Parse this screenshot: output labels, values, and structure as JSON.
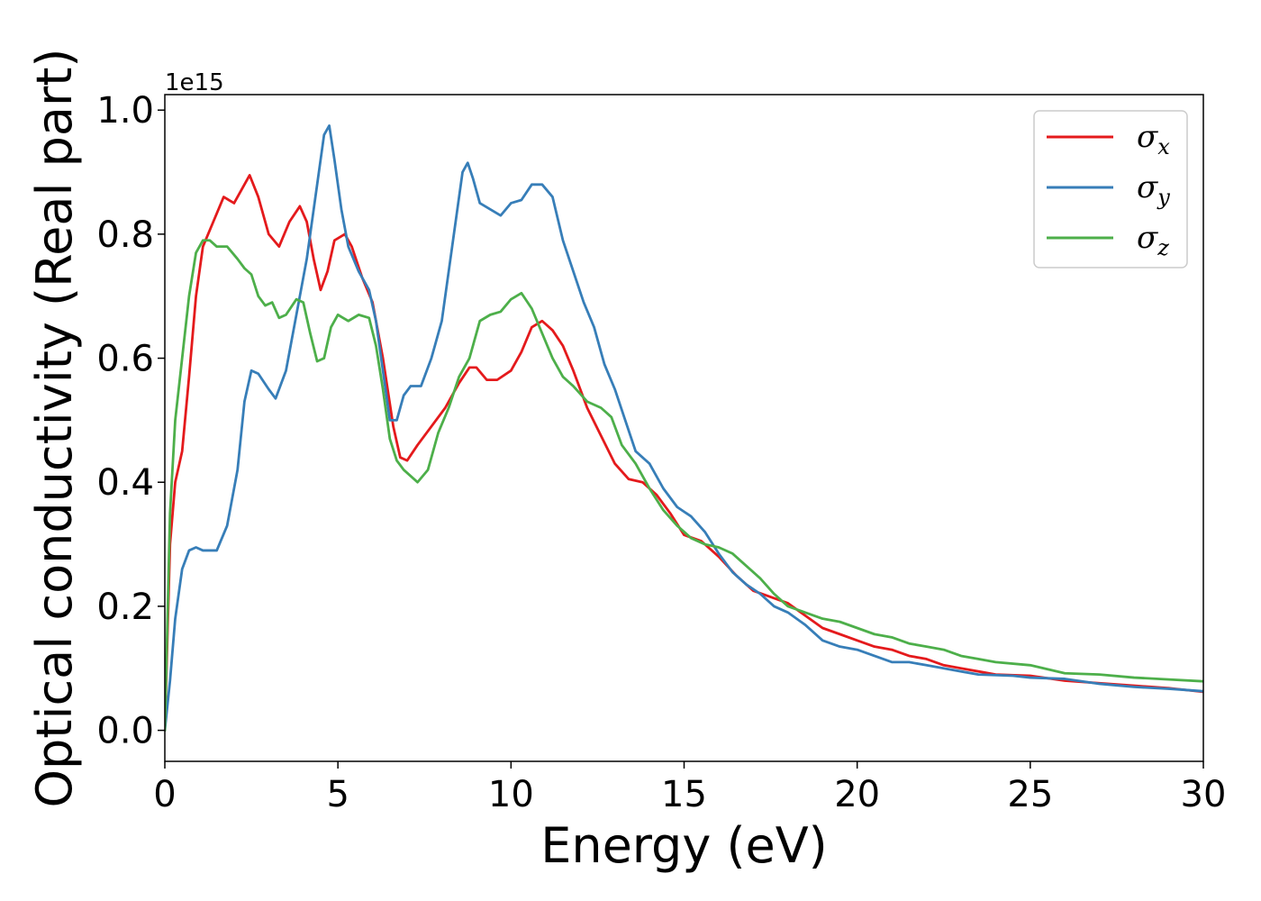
{
  "chart_data": {
    "type": "line",
    "title": "",
    "xlabel": "Energy (eV)",
    "ylabel": "Optical conductivity (Real part)",
    "y_offset_label": "1e15",
    "xlim": [
      0,
      30
    ],
    "ylim": [
      -0.05,
      1.025
    ],
    "xticks": [
      0,
      5,
      10,
      15,
      20,
      25,
      30
    ],
    "xtick_labels": [
      "0",
      "5",
      "10",
      "15",
      "20",
      "25",
      "30"
    ],
    "yticks": [
      0.0,
      0.2,
      0.4,
      0.6,
      0.8,
      1.0
    ],
    "ytick_labels": [
      "0.0",
      "0.2",
      "0.4",
      "0.6",
      "0.8",
      "1.0"
    ],
    "grid": false,
    "legend_position": "top-right",
    "series": [
      {
        "name": "σx",
        "symbol": "σ",
        "subscript": "x",
        "color": "#e41a1c",
        "points": [
          [
            0,
            0
          ],
          [
            0.15,
            0.3
          ],
          [
            0.3,
            0.4
          ],
          [
            0.5,
            0.45
          ],
          [
            0.7,
            0.57
          ],
          [
            0.9,
            0.7
          ],
          [
            1.1,
            0.78
          ],
          [
            1.4,
            0.82
          ],
          [
            1.7,
            0.86
          ],
          [
            2.0,
            0.85
          ],
          [
            2.2,
            0.87
          ],
          [
            2.45,
            0.895
          ],
          [
            2.7,
            0.86
          ],
          [
            3.0,
            0.8
          ],
          [
            3.3,
            0.78
          ],
          [
            3.6,
            0.82
          ],
          [
            3.9,
            0.845
          ],
          [
            4.1,
            0.82
          ],
          [
            4.3,
            0.76
          ],
          [
            4.5,
            0.71
          ],
          [
            4.7,
            0.74
          ],
          [
            4.9,
            0.79
          ],
          [
            5.2,
            0.8
          ],
          [
            5.4,
            0.78
          ],
          [
            5.7,
            0.73
          ],
          [
            6.0,
            0.69
          ],
          [
            6.3,
            0.6
          ],
          [
            6.6,
            0.49
          ],
          [
            6.8,
            0.44
          ],
          [
            7.0,
            0.435
          ],
          [
            7.3,
            0.46
          ],
          [
            7.7,
            0.49
          ],
          [
            8.1,
            0.52
          ],
          [
            8.5,
            0.56
          ],
          [
            8.8,
            0.585
          ],
          [
            9.0,
            0.585
          ],
          [
            9.3,
            0.565
          ],
          [
            9.6,
            0.565
          ],
          [
            10.0,
            0.58
          ],
          [
            10.3,
            0.61
          ],
          [
            10.6,
            0.65
          ],
          [
            10.9,
            0.66
          ],
          [
            11.2,
            0.645
          ],
          [
            11.5,
            0.62
          ],
          [
            11.8,
            0.58
          ],
          [
            12.2,
            0.52
          ],
          [
            12.6,
            0.475
          ],
          [
            13.0,
            0.43
          ],
          [
            13.4,
            0.405
          ],
          [
            13.8,
            0.4
          ],
          [
            14.2,
            0.38
          ],
          [
            14.6,
            0.35
          ],
          [
            15.0,
            0.315
          ],
          [
            15.5,
            0.305
          ],
          [
            16.0,
            0.28
          ],
          [
            16.5,
            0.25
          ],
          [
            17.0,
            0.225
          ],
          [
            17.5,
            0.215
          ],
          [
            18.0,
            0.205
          ],
          [
            18.5,
            0.185
          ],
          [
            19.0,
            0.165
          ],
          [
            19.5,
            0.155
          ],
          [
            20.0,
            0.145
          ],
          [
            20.5,
            0.135
          ],
          [
            21.0,
            0.13
          ],
          [
            21.5,
            0.12
          ],
          [
            22.0,
            0.115
          ],
          [
            22.5,
            0.105
          ],
          [
            23.0,
            0.1
          ],
          [
            23.5,
            0.095
          ],
          [
            24.0,
            0.09
          ],
          [
            25.0,
            0.088
          ],
          [
            26.0,
            0.08
          ],
          [
            27.0,
            0.076
          ],
          [
            28.0,
            0.072
          ],
          [
            29.0,
            0.068
          ],
          [
            30.0,
            0.062
          ]
        ]
      },
      {
        "name": "σy",
        "symbol": "σ",
        "subscript": "y",
        "color": "#377eb8",
        "points": [
          [
            0,
            0
          ],
          [
            0.15,
            0.08
          ],
          [
            0.3,
            0.18
          ],
          [
            0.5,
            0.26
          ],
          [
            0.7,
            0.29
          ],
          [
            0.9,
            0.295
          ],
          [
            1.1,
            0.29
          ],
          [
            1.3,
            0.29
          ],
          [
            1.5,
            0.29
          ],
          [
            1.8,
            0.33
          ],
          [
            2.1,
            0.42
          ],
          [
            2.3,
            0.53
          ],
          [
            2.5,
            0.58
          ],
          [
            2.7,
            0.575
          ],
          [
            3.0,
            0.55
          ],
          [
            3.2,
            0.535
          ],
          [
            3.5,
            0.58
          ],
          [
            3.8,
            0.67
          ],
          [
            4.1,
            0.76
          ],
          [
            4.4,
            0.88
          ],
          [
            4.6,
            0.96
          ],
          [
            4.75,
            0.975
          ],
          [
            4.9,
            0.92
          ],
          [
            5.1,
            0.84
          ],
          [
            5.3,
            0.78
          ],
          [
            5.6,
            0.74
          ],
          [
            5.9,
            0.71
          ],
          [
            6.1,
            0.66
          ],
          [
            6.3,
            0.58
          ],
          [
            6.5,
            0.5
          ],
          [
            6.7,
            0.5
          ],
          [
            6.9,
            0.54
          ],
          [
            7.1,
            0.555
          ],
          [
            7.4,
            0.555
          ],
          [
            7.7,
            0.6
          ],
          [
            8.0,
            0.66
          ],
          [
            8.3,
            0.78
          ],
          [
            8.6,
            0.9
          ],
          [
            8.75,
            0.915
          ],
          [
            8.9,
            0.89
          ],
          [
            9.1,
            0.85
          ],
          [
            9.4,
            0.84
          ],
          [
            9.7,
            0.83
          ],
          [
            10.0,
            0.85
          ],
          [
            10.3,
            0.855
          ],
          [
            10.6,
            0.88
          ],
          [
            10.9,
            0.88
          ],
          [
            11.2,
            0.86
          ],
          [
            11.5,
            0.79
          ],
          [
            11.8,
            0.74
          ],
          [
            12.1,
            0.69
          ],
          [
            12.4,
            0.65
          ],
          [
            12.7,
            0.59
          ],
          [
            13.0,
            0.55
          ],
          [
            13.3,
            0.5
          ],
          [
            13.6,
            0.45
          ],
          [
            14.0,
            0.43
          ],
          [
            14.4,
            0.39
          ],
          [
            14.8,
            0.36
          ],
          [
            15.2,
            0.345
          ],
          [
            15.6,
            0.32
          ],
          [
            16.0,
            0.285
          ],
          [
            16.4,
            0.255
          ],
          [
            16.8,
            0.235
          ],
          [
            17.2,
            0.22
          ],
          [
            17.6,
            0.2
          ],
          [
            18.0,
            0.19
          ],
          [
            18.5,
            0.17
          ],
          [
            19.0,
            0.145
          ],
          [
            19.5,
            0.135
          ],
          [
            20.0,
            0.13
          ],
          [
            20.5,
            0.12
          ],
          [
            21.0,
            0.11
          ],
          [
            21.5,
            0.11
          ],
          [
            22.0,
            0.105
          ],
          [
            22.5,
            0.1
          ],
          [
            23.0,
            0.095
          ],
          [
            23.5,
            0.09
          ],
          [
            24.5,
            0.088
          ],
          [
            25.0,
            0.085
          ],
          [
            26.0,
            0.083
          ],
          [
            27.0,
            0.075
          ],
          [
            28.0,
            0.07
          ],
          [
            29.0,
            0.067
          ],
          [
            30.0,
            0.063
          ]
        ]
      },
      {
        "name": "σz",
        "symbol": "σ",
        "subscript": "z",
        "color": "#4daf4a",
        "points": [
          [
            0,
            0
          ],
          [
            0.15,
            0.35
          ],
          [
            0.3,
            0.5
          ],
          [
            0.5,
            0.6
          ],
          [
            0.7,
            0.7
          ],
          [
            0.9,
            0.77
          ],
          [
            1.1,
            0.79
          ],
          [
            1.3,
            0.79
          ],
          [
            1.5,
            0.78
          ],
          [
            1.8,
            0.78
          ],
          [
            2.1,
            0.76
          ],
          [
            2.3,
            0.745
          ],
          [
            2.5,
            0.735
          ],
          [
            2.7,
            0.7
          ],
          [
            2.9,
            0.685
          ],
          [
            3.1,
            0.69
          ],
          [
            3.3,
            0.665
          ],
          [
            3.5,
            0.67
          ],
          [
            3.8,
            0.695
          ],
          [
            4.0,
            0.69
          ],
          [
            4.2,
            0.64
          ],
          [
            4.4,
            0.595
          ],
          [
            4.6,
            0.6
          ],
          [
            4.8,
            0.65
          ],
          [
            5.0,
            0.67
          ],
          [
            5.3,
            0.66
          ],
          [
            5.6,
            0.67
          ],
          [
            5.9,
            0.665
          ],
          [
            6.1,
            0.62
          ],
          [
            6.3,
            0.55
          ],
          [
            6.5,
            0.47
          ],
          [
            6.7,
            0.435
          ],
          [
            6.9,
            0.42
          ],
          [
            7.1,
            0.41
          ],
          [
            7.3,
            0.4
          ],
          [
            7.6,
            0.42
          ],
          [
            7.9,
            0.48
          ],
          [
            8.2,
            0.52
          ],
          [
            8.5,
            0.57
          ],
          [
            8.8,
            0.6
          ],
          [
            9.1,
            0.66
          ],
          [
            9.4,
            0.67
          ],
          [
            9.7,
            0.675
          ],
          [
            10.0,
            0.695
          ],
          [
            10.3,
            0.705
          ],
          [
            10.6,
            0.68
          ],
          [
            10.9,
            0.64
          ],
          [
            11.2,
            0.6
          ],
          [
            11.5,
            0.57
          ],
          [
            11.8,
            0.555
          ],
          [
            12.2,
            0.53
          ],
          [
            12.6,
            0.52
          ],
          [
            12.9,
            0.505
          ],
          [
            13.2,
            0.46
          ],
          [
            13.6,
            0.43
          ],
          [
            14.0,
            0.39
          ],
          [
            14.4,
            0.355
          ],
          [
            14.8,
            0.33
          ],
          [
            15.2,
            0.31
          ],
          [
            15.6,
            0.3
          ],
          [
            16.0,
            0.295
          ],
          [
            16.4,
            0.285
          ],
          [
            16.8,
            0.265
          ],
          [
            17.2,
            0.245
          ],
          [
            17.6,
            0.22
          ],
          [
            18.0,
            0.2
          ],
          [
            18.5,
            0.19
          ],
          [
            19.0,
            0.18
          ],
          [
            19.5,
            0.175
          ],
          [
            20.0,
            0.165
          ],
          [
            20.5,
            0.155
          ],
          [
            21.0,
            0.15
          ],
          [
            21.5,
            0.14
          ],
          [
            22.0,
            0.135
          ],
          [
            22.5,
            0.13
          ],
          [
            23.0,
            0.12
          ],
          [
            23.5,
            0.115
          ],
          [
            24.0,
            0.11
          ],
          [
            25.0,
            0.105
          ],
          [
            26.0,
            0.092
          ],
          [
            27.0,
            0.09
          ],
          [
            28.0,
            0.085
          ],
          [
            29.0,
            0.082
          ],
          [
            30.0,
            0.079
          ]
        ]
      }
    ]
  }
}
